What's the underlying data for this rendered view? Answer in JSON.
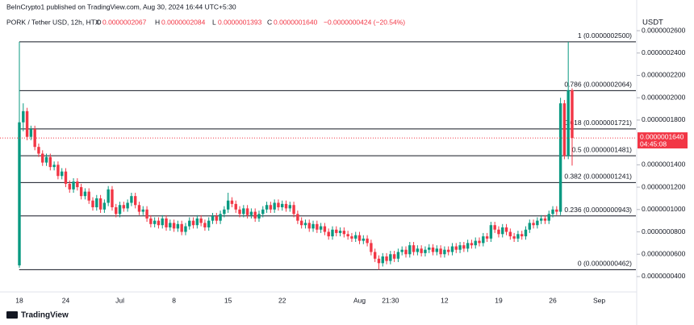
{
  "header": {
    "publisher": "BeInCrypto1 published on TradingView.com, Aug 30, 2024 16:44 UTC+5:30",
    "brand": "TradingView"
  },
  "legend": {
    "O": {
      "key": "O",
      "text": "0.0000002067"
    },
    "H": {
      "key": "H",
      "text": "0.0000002084"
    },
    "L": {
      "key": "L",
      "text": "0.0000001393"
    },
    "C": {
      "key": "C",
      "text": "0.0000001640"
    },
    "change": "−0.0000000424 (−20.54%)"
  },
  "price_tag": {
    "value": 1.64e-07,
    "label": "0.0000001640",
    "countdown": "04:45:08"
  },
  "chart_data": {
    "type": "candlestick",
    "title": "PORK / Tether USD, 12h, HTX",
    "y_axis_label": "USDT",
    "up_color": "#089981",
    "down_color": "#f23645",
    "ylim": [
      2.77e-08,
      2.658e-07
    ],
    "yticks": [
      {
        "value": 4e-08,
        "label": "0.0000000400"
      },
      {
        "value": 6e-08,
        "label": "0.0000000600"
      },
      {
        "value": 8e-08,
        "label": "0.0000000800"
      },
      {
        "value": 1e-07,
        "label": "0.0000001000"
      },
      {
        "value": 1.2e-07,
        "label": "0.0000001200"
      },
      {
        "value": 1.4e-07,
        "label": "0.0000001400"
      },
      {
        "value": 1.8e-07,
        "label": "0.0000001800"
      },
      {
        "value": 2e-07,
        "label": "0.0000002000"
      },
      {
        "value": 2.2e-07,
        "label": "0.0000002200"
      },
      {
        "value": 2.4e-07,
        "label": "0.0000002400"
      },
      {
        "value": 2.6e-07,
        "label": "0.0000002600"
      }
    ],
    "fib_levels": [
      {
        "value": 2.5e-07,
        "label": "1 (0.0000002500)"
      },
      {
        "value": 2.064e-07,
        "label": "0.786 (0.0000002064)"
      },
      {
        "value": 1.721e-07,
        "label": "0.618 (0.0000001721)"
      },
      {
        "value": 1.481e-07,
        "label": "0.5 (0.0000001481)"
      },
      {
        "value": 1.241e-07,
        "label": "0.382 (0.0000001241)"
      },
      {
        "value": 9.43e-08,
        "label": "0.236 (0.0000000943)"
      },
      {
        "value": 4.62e-08,
        "label": "0 (0.0000000462)"
      }
    ],
    "categories": [
      "18",
      null,
      null,
      null,
      null,
      null,
      null,
      null,
      null,
      null,
      null,
      null,
      "24",
      null,
      null,
      null,
      null,
      null,
      null,
      null,
      null,
      null,
      null,
      null,
      null,
      null,
      "Jul",
      null,
      null,
      null,
      null,
      null,
      null,
      null,
      null,
      null,
      null,
      null,
      null,
      null,
      "8",
      null,
      null,
      null,
      null,
      null,
      null,
      null,
      null,
      null,
      null,
      null,
      null,
      null,
      "15",
      null,
      null,
      null,
      null,
      null,
      null,
      null,
      null,
      null,
      null,
      null,
      null,
      null,
      "22",
      null,
      null,
      null,
      null,
      null,
      null,
      null,
      null,
      null,
      null,
      null,
      null,
      null,
      null,
      null,
      null,
      null,
      null,
      null,
      "Aug",
      null,
      null,
      null,
      null,
      null,
      null,
      null,
      "21:30",
      null,
      null,
      null,
      null,
      null,
      null,
      null,
      null,
      null,
      null,
      null,
      null,
      null,
      "12",
      null,
      null,
      null,
      null,
      null,
      null,
      null,
      null,
      null,
      null,
      null,
      null,
      null,
      "19",
      null,
      null,
      null,
      null,
      null,
      null,
      null,
      null,
      null,
      null,
      null,
      null,
      null,
      "26",
      null,
      null,
      null,
      null,
      null,
      null,
      null,
      null,
      null,
      null,
      null,
      "Sep",
      null
    ],
    "open": [
      5e-08,
      1.78e-07,
      1.88e-07,
      1.65e-07,
      1.72e-07,
      1.56e-07,
      1.5e-07,
      1.42e-07,
      1.47e-07,
      1.38e-07,
      1.4e-07,
      1.3e-07,
      1.34e-07,
      1.23e-07,
      1.18e-07,
      1.25e-07,
      1.2e-07,
      1.12e-07,
      1.16e-07,
      1.08e-07,
      1.02e-07,
      1.1e-07,
      1e-07,
      1.06e-07,
      1.18e-07,
      1.02e-07,
      9.6e-08,
      1.04e-07,
      1.01e-07,
      1.06e-07,
      1.12e-07,
      1.04e-07,
      9.8e-08,
      1e-07,
      9.2e-08,
      8.7e-08,
      9e-08,
      8.6e-08,
      9.2e-08,
      8.4e-08,
      8.8e-08,
      8.3e-08,
      8.7e-08,
      8e-08,
      8.5e-08,
      9e-08,
      8.6e-08,
      9.2e-08,
      8.8e-08,
      8.4e-08,
      9e-08,
      9.4e-08,
      9e-08,
      9.6e-08,
      1e-07,
      1.08e-07,
      1.05e-07,
      1e-07,
      9.6e-08,
      1.01e-07,
      9.5e-08,
      9.8e-08,
      9.2e-08,
      9.6e-08,
      1e-07,
      1.04e-07,
      1e-07,
      1.06e-07,
      1.02e-07,
      1.05e-07,
      1.01e-07,
      1.04e-07,
      9.6e-08,
      9e-08,
      8.6e-08,
      8.8e-08,
      8.3e-08,
      8.7e-08,
      8.2e-08,
      8.5e-08,
      8e-08,
      7.6e-08,
      8.2e-08,
      7.9e-08,
      8.1e-08,
      7.8e-08,
      7.6e-08,
      7.4e-08,
      7.7e-08,
      7.2e-08,
      7.4e-08,
      7e-08,
      6.2e-08,
      5.6e-08,
      5.2e-08,
      5.8e-08,
      5.4e-08,
      6e-08,
      5.6e-08,
      6.2e-08,
      6.4e-08,
      6e-08,
      6.8e-08,
      6.2e-08,
      6.5e-08,
      6.1e-08,
      6.4e-08,
      6.6e-08,
      6.2e-08,
      6.5e-08,
      6e-08,
      6.4e-08,
      6.2e-08,
      6.7e-08,
      6.4e-08,
      6.8e-08,
      6.5e-08,
      7e-08,
      6.8e-08,
      7.2e-08,
      7e-08,
      7.6e-08,
      7.4e-08,
      8.6e-08,
      8.2e-08,
      7.8e-08,
      8.4e-08,
      8e-08,
      7.6e-08,
      7.4e-08,
      7.8e-08,
      7.6e-08,
      8.2e-08,
      8.8e-08,
      8.6e-08,
      9e-08,
      9.2e-08,
      9e-08,
      9.6e-08,
      1e-07,
      9.8e-08,
      1.95e-07,
      1.48e-07,
      2.067e-07,
      null,
      null,
      null,
      null,
      null,
      null,
      null,
      null
    ],
    "high": [
      2.5e-07,
      1.95e-07,
      1.91e-07,
      1.75e-07,
      1.75e-07,
      1.59e-07,
      1.53e-07,
      1.5e-07,
      1.5e-07,
      1.43e-07,
      1.43e-07,
      1.37e-07,
      1.37e-07,
      1.26e-07,
      1.28e-07,
      1.28e-07,
      1.23e-07,
      1.19e-07,
      1.19e-07,
      1.11e-07,
      1.13e-07,
      1.13e-07,
      1.09e-07,
      1.21e-07,
      1.21e-07,
      1.05e-07,
      1.07e-07,
      1.07e-07,
      1.09e-07,
      1.15e-07,
      1.15e-07,
      1.07e-07,
      1.03e-07,
      1.03e-07,
      9.5e-08,
      9.3e-08,
      9.3e-08,
      9.5e-08,
      9.5e-08,
      9.1e-08,
      9.1e-08,
      9e-08,
      9e-08,
      8.8e-08,
      9.3e-08,
      9.3e-08,
      9.5e-08,
      9.5e-08,
      9.1e-08,
      9.3e-08,
      9.7e-08,
      9.7e-08,
      9.9e-08,
      1.03e-07,
      1.15e-07,
      1.11e-07,
      1.08e-07,
      1.03e-07,
      1.04e-07,
      1.04e-07,
      1.01e-07,
      1.01e-07,
      9.9e-08,
      1.03e-07,
      1.07e-07,
      1.07e-07,
      1.09e-07,
      1.09e-07,
      1.08e-07,
      1.08e-07,
      1.07e-07,
      1.07e-07,
      9.9e-08,
      9.3e-08,
      9.1e-08,
      9.1e-08,
      9e-08,
      9e-08,
      8.8e-08,
      8.8e-08,
      8.3e-08,
      8.5e-08,
      8.5e-08,
      8.4e-08,
      8.4e-08,
      8.1e-08,
      7.9e-08,
      8e-08,
      8e-08,
      7.7e-08,
      7.7e-08,
      7.3e-08,
      6.5e-08,
      5.9e-08,
      6.1e-08,
      6.1e-08,
      6.3e-08,
      6.3e-08,
      6.5e-08,
      6.7e-08,
      6.7e-08,
      7.1e-08,
      7.1e-08,
      6.8e-08,
      6.8e-08,
      6.7e-08,
      6.9e-08,
      6.9e-08,
      6.8e-08,
      6.8e-08,
      6.7e-08,
      6.7e-08,
      7e-08,
      7e-08,
      7.1e-08,
      7.1e-08,
      7.3e-08,
      7.3e-08,
      7.5e-08,
      7.5e-08,
      7.9e-08,
      7.9e-08,
      8.9e-08,
      8.9e-08,
      8.5e-08,
      8.7e-08,
      8.7e-08,
      8.3e-08,
      7.9e-08,
      8.1e-08,
      8.1e-08,
      8.5e-08,
      9.1e-08,
      9.1e-08,
      9.3e-08,
      9.5e-08,
      9.5e-08,
      9.9e-08,
      1.03e-07,
      1.03e-07,
      2e-07,
      1.98e-07,
      2.5e-07,
      2.084e-07,
      null,
      null,
      null,
      null,
      null,
      null,
      null,
      null
    ],
    "low": [
      4.8e-08,
      1.7e-07,
      1.62e-07,
      1.62e-07,
      1.53e-07,
      1.47e-07,
      1.39e-07,
      1.39e-07,
      1.35e-07,
      1.35e-07,
      1.27e-07,
      1.27e-07,
      1.2e-07,
      1.15e-07,
      1.15e-07,
      1.17e-07,
      1.09e-07,
      1.09e-07,
      1.05e-07,
      9.9e-08,
      9.9e-08,
      9.7e-08,
      9.7e-08,
      1.03e-07,
      9.9e-08,
      9.3e-08,
      9.3e-08,
      9.8e-08,
      9.8e-08,
      1.03e-07,
      1.01e-07,
      9.5e-08,
      9.5e-08,
      8.9e-08,
      8.4e-08,
      8.4e-08,
      8.3e-08,
      8.3e-08,
      8.1e-08,
      8.1e-08,
      8e-08,
      8e-08,
      7.7e-08,
      7.7e-08,
      8.2e-08,
      8.3e-08,
      8.3e-08,
      8.5e-08,
      8.1e-08,
      8.1e-08,
      8.7e-08,
      8.7e-08,
      8.7e-08,
      9.3e-08,
      9.7e-08,
      1.02e-07,
      9.7e-08,
      9.3e-08,
      9.3e-08,
      9.2e-08,
      9.2e-08,
      8.9e-08,
      8.9e-08,
      9.3e-08,
      9.7e-08,
      9.7e-08,
      9.7e-08,
      9.9e-08,
      9.9e-08,
      9.8e-08,
      9.8e-08,
      9.3e-08,
      8.7e-08,
      8.3e-08,
      8.3e-08,
      8e-08,
      8e-08,
      7.9e-08,
      7.9e-08,
      7.7e-08,
      7.3e-08,
      7.3e-08,
      7.6e-08,
      7.6e-08,
      7.5e-08,
      7.3e-08,
      7.1e-08,
      7.1e-08,
      6.9e-08,
      6.9e-08,
      6.7e-08,
      5.9e-08,
      5.3e-08,
      4.62e-08,
      4.9e-08,
      5.1e-08,
      5.1e-08,
      5.3e-08,
      5.3e-08,
      5.9e-08,
      5.7e-08,
      5.7e-08,
      5.9e-08,
      5.9e-08,
      5.8e-08,
      5.8e-08,
      6.1e-08,
      5.9e-08,
      5.9e-08,
      5.7e-08,
      5.7e-08,
      5.9e-08,
      5.9e-08,
      6.1e-08,
      6.1e-08,
      6.2e-08,
      6.2e-08,
      6.5e-08,
      6.5e-08,
      6.7e-08,
      6.7e-08,
      7.1e-08,
      7.1e-08,
      7.9e-08,
      7.5e-08,
      7.5e-08,
      7.7e-08,
      7.3e-08,
      7.1e-08,
      7.1e-08,
      7.3e-08,
      7.3e-08,
      7.9e-08,
      8.3e-08,
      8.3e-08,
      8.7e-08,
      8.7e-08,
      8.7e-08,
      9.3e-08,
      9.5e-08,
      9.5e-08,
      1.45e-07,
      1.45e-07,
      1.393e-07,
      null,
      null,
      null,
      null,
      null,
      null,
      null,
      null
    ],
    "close": [
      1.78e-07,
      1.88e-07,
      1.65e-07,
      1.72e-07,
      1.56e-07,
      1.5e-07,
      1.42e-07,
      1.47e-07,
      1.38e-07,
      1.4e-07,
      1.3e-07,
      1.34e-07,
      1.23e-07,
      1.18e-07,
      1.25e-07,
      1.2e-07,
      1.12e-07,
      1.16e-07,
      1.08e-07,
      1.02e-07,
      1.1e-07,
      1e-07,
      1.06e-07,
      1.18e-07,
      1.02e-07,
      9.6e-08,
      1.04e-07,
      1.01e-07,
      1.06e-07,
      1.12e-07,
      1.04e-07,
      9.8e-08,
      1e-07,
      9.2e-08,
      8.7e-08,
      9e-08,
      8.6e-08,
      9.2e-08,
      8.4e-08,
      8.8e-08,
      8.3e-08,
      8.7e-08,
      8e-08,
      8.5e-08,
      9e-08,
      8.6e-08,
      9.2e-08,
      8.8e-08,
      8.4e-08,
      9e-08,
      9.4e-08,
      9e-08,
      9.6e-08,
      1e-07,
      1.08e-07,
      1.05e-07,
      1e-07,
      9.6e-08,
      1.01e-07,
      9.5e-08,
      9.8e-08,
      9.2e-08,
      9.6e-08,
      1e-07,
      1.04e-07,
      1e-07,
      1.06e-07,
      1.02e-07,
      1.05e-07,
      1.01e-07,
      1.04e-07,
      9.6e-08,
      9e-08,
      8.6e-08,
      8.8e-08,
      8.3e-08,
      8.7e-08,
      8.2e-08,
      8.5e-08,
      8e-08,
      7.6e-08,
      8.2e-08,
      7.9e-08,
      8.1e-08,
      7.8e-08,
      7.6e-08,
      7.4e-08,
      7.7e-08,
      7.2e-08,
      7.4e-08,
      7e-08,
      6.2e-08,
      5.6e-08,
      5.2e-08,
      5.8e-08,
      5.4e-08,
      6e-08,
      5.6e-08,
      6.2e-08,
      6.4e-08,
      6e-08,
      6.8e-08,
      6.2e-08,
      6.5e-08,
      6.1e-08,
      6.4e-08,
      6.6e-08,
      6.2e-08,
      6.5e-08,
      6e-08,
      6.4e-08,
      6.2e-08,
      6.7e-08,
      6.4e-08,
      6.8e-08,
      6.5e-08,
      7e-08,
      6.8e-08,
      7.2e-08,
      7e-08,
      7.6e-08,
      7.4e-08,
      8.6e-08,
      8.2e-08,
      7.8e-08,
      8.4e-08,
      8e-08,
      7.6e-08,
      7.4e-08,
      7.8e-08,
      7.6e-08,
      8.2e-08,
      8.8e-08,
      8.6e-08,
      9e-08,
      9.2e-08,
      9e-08,
      9.6e-08,
      1e-07,
      9.8e-08,
      1.95e-07,
      1.48e-07,
      2.067e-07,
      1.64e-07,
      null,
      null,
      null,
      null,
      null,
      null,
      null,
      null
    ]
  }
}
